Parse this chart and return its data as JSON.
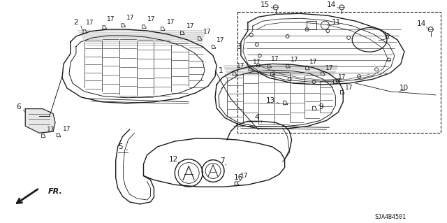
{
  "background_color": "#ffffff",
  "line_color": "#1a1a1a",
  "diagram_id": "SJA4B4501",
  "figsize": [
    6.4,
    3.19
  ],
  "dpi": 100
}
